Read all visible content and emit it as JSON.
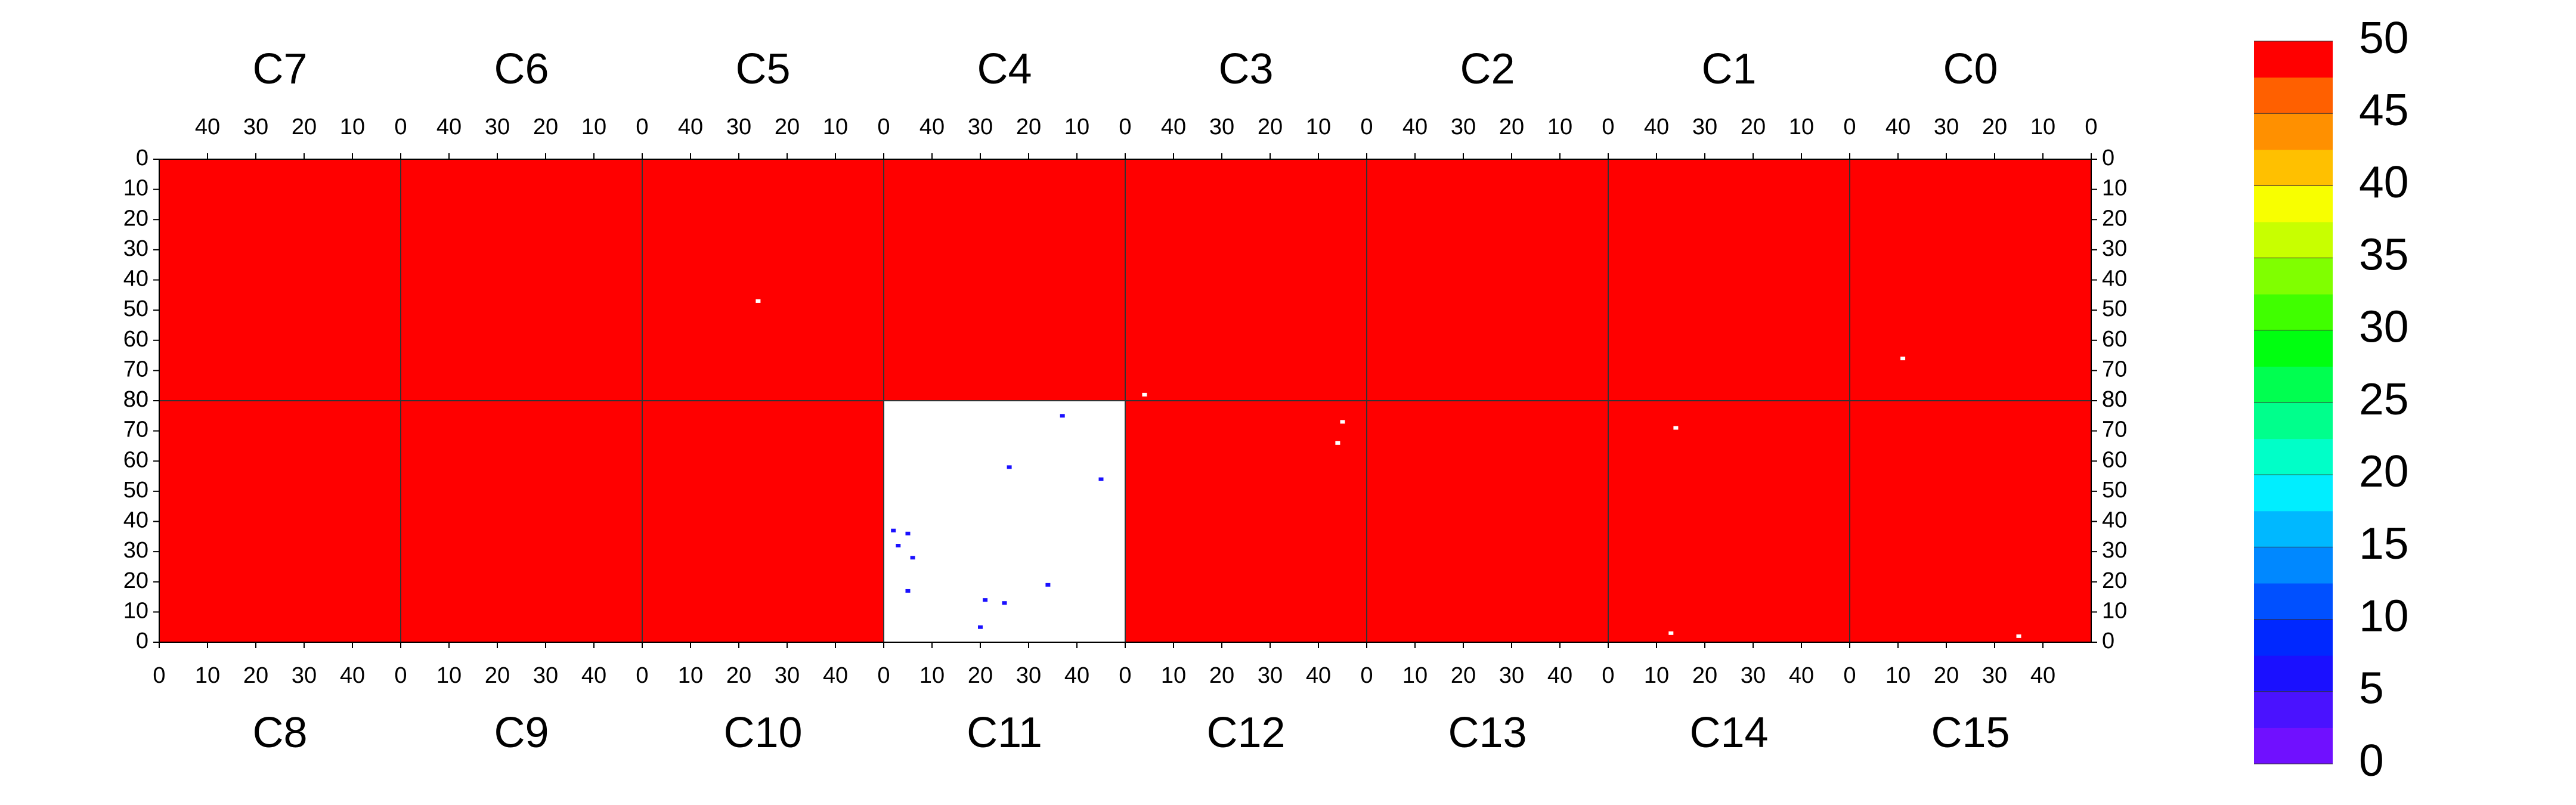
{
  "chart_data": {
    "type": "heatmap",
    "xlim": [
      0,
      50
    ],
    "ylim": [
      0,
      80
    ],
    "xticks": [
      0,
      10,
      20,
      30,
      40
    ],
    "yticks": [
      0,
      10,
      20,
      30,
      40,
      50,
      60,
      70,
      80
    ],
    "top_panels": [
      {
        "name": "C7",
        "value": 50,
        "points": []
      },
      {
        "name": "C6",
        "value": 50,
        "points": []
      },
      {
        "name": "C5",
        "value": 50,
        "points": [
          {
            "x": 26,
            "y": 47,
            "value": null
          }
        ]
      },
      {
        "name": "C4",
        "value": 50,
        "points": []
      },
      {
        "name": "C3",
        "value": 50,
        "points": [
          {
            "x": 46,
            "y": 78,
            "value": null
          }
        ]
      },
      {
        "name": "C2",
        "value": 50,
        "points": []
      },
      {
        "name": "C1",
        "value": 50,
        "points": []
      },
      {
        "name": "C0",
        "value": 50,
        "points": [
          {
            "x": 39,
            "y": 66,
            "value": null
          }
        ]
      }
    ],
    "bottom_panels": [
      {
        "name": "C8",
        "value": 50,
        "points": []
      },
      {
        "name": "C9",
        "value": 50,
        "points": []
      },
      {
        "name": "C10",
        "value": 50,
        "points": []
      },
      {
        "name": "C11",
        "value": null,
        "points": [
          {
            "x": 37,
            "y": 75,
            "value": 7
          },
          {
            "x": 26,
            "y": 58,
            "value": 7
          },
          {
            "x": 45,
            "y": 54,
            "value": 7
          },
          {
            "x": 2,
            "y": 37,
            "value": 7
          },
          {
            "x": 5,
            "y": 36,
            "value": 7
          },
          {
            "x": 3,
            "y": 32,
            "value": 7
          },
          {
            "x": 6,
            "y": 28,
            "value": 7
          },
          {
            "x": 5,
            "y": 17,
            "value": 7
          },
          {
            "x": 34,
            "y": 19,
            "value": 7
          },
          {
            "x": 21,
            "y": 14,
            "value": 7
          },
          {
            "x": 25,
            "y": 13,
            "value": 7
          },
          {
            "x": 20,
            "y": 5,
            "value": 7
          }
        ]
      },
      {
        "name": "C12",
        "value": 50,
        "points": [
          {
            "x": 45,
            "y": 73,
            "value": null
          },
          {
            "x": 44,
            "y": 66,
            "value": null
          }
        ]
      },
      {
        "name": "C13",
        "value": 50,
        "points": []
      },
      {
        "name": "C14",
        "value": 50,
        "points": [
          {
            "x": 14,
            "y": 71,
            "value": null
          },
          {
            "x": 13,
            "y": 3,
            "value": null
          }
        ]
      },
      {
        "name": "C15",
        "value": 50,
        "points": [
          {
            "x": 35,
            "y": 2,
            "value": null
          }
        ]
      }
    ],
    "colorbar": {
      "lim": [
        0,
        50
      ],
      "ticks": [
        0,
        5,
        10,
        15,
        20,
        25,
        30,
        35,
        40,
        45,
        50
      ],
      "colors": [
        "#7010ff",
        "#4a12ff",
        "#1a10ff",
        "#0028ff",
        "#0050ff",
        "#0088ff",
        "#00b8ff",
        "#00eeff",
        "#00ffc8",
        "#00ff8c",
        "#00ff50",
        "#00ff10",
        "#40ff00",
        "#80ff00",
        "#c8ff00",
        "#f8ff00",
        "#ffc000",
        "#ff9000",
        "#ff6000",
        "#ff0000"
      ]
    }
  }
}
